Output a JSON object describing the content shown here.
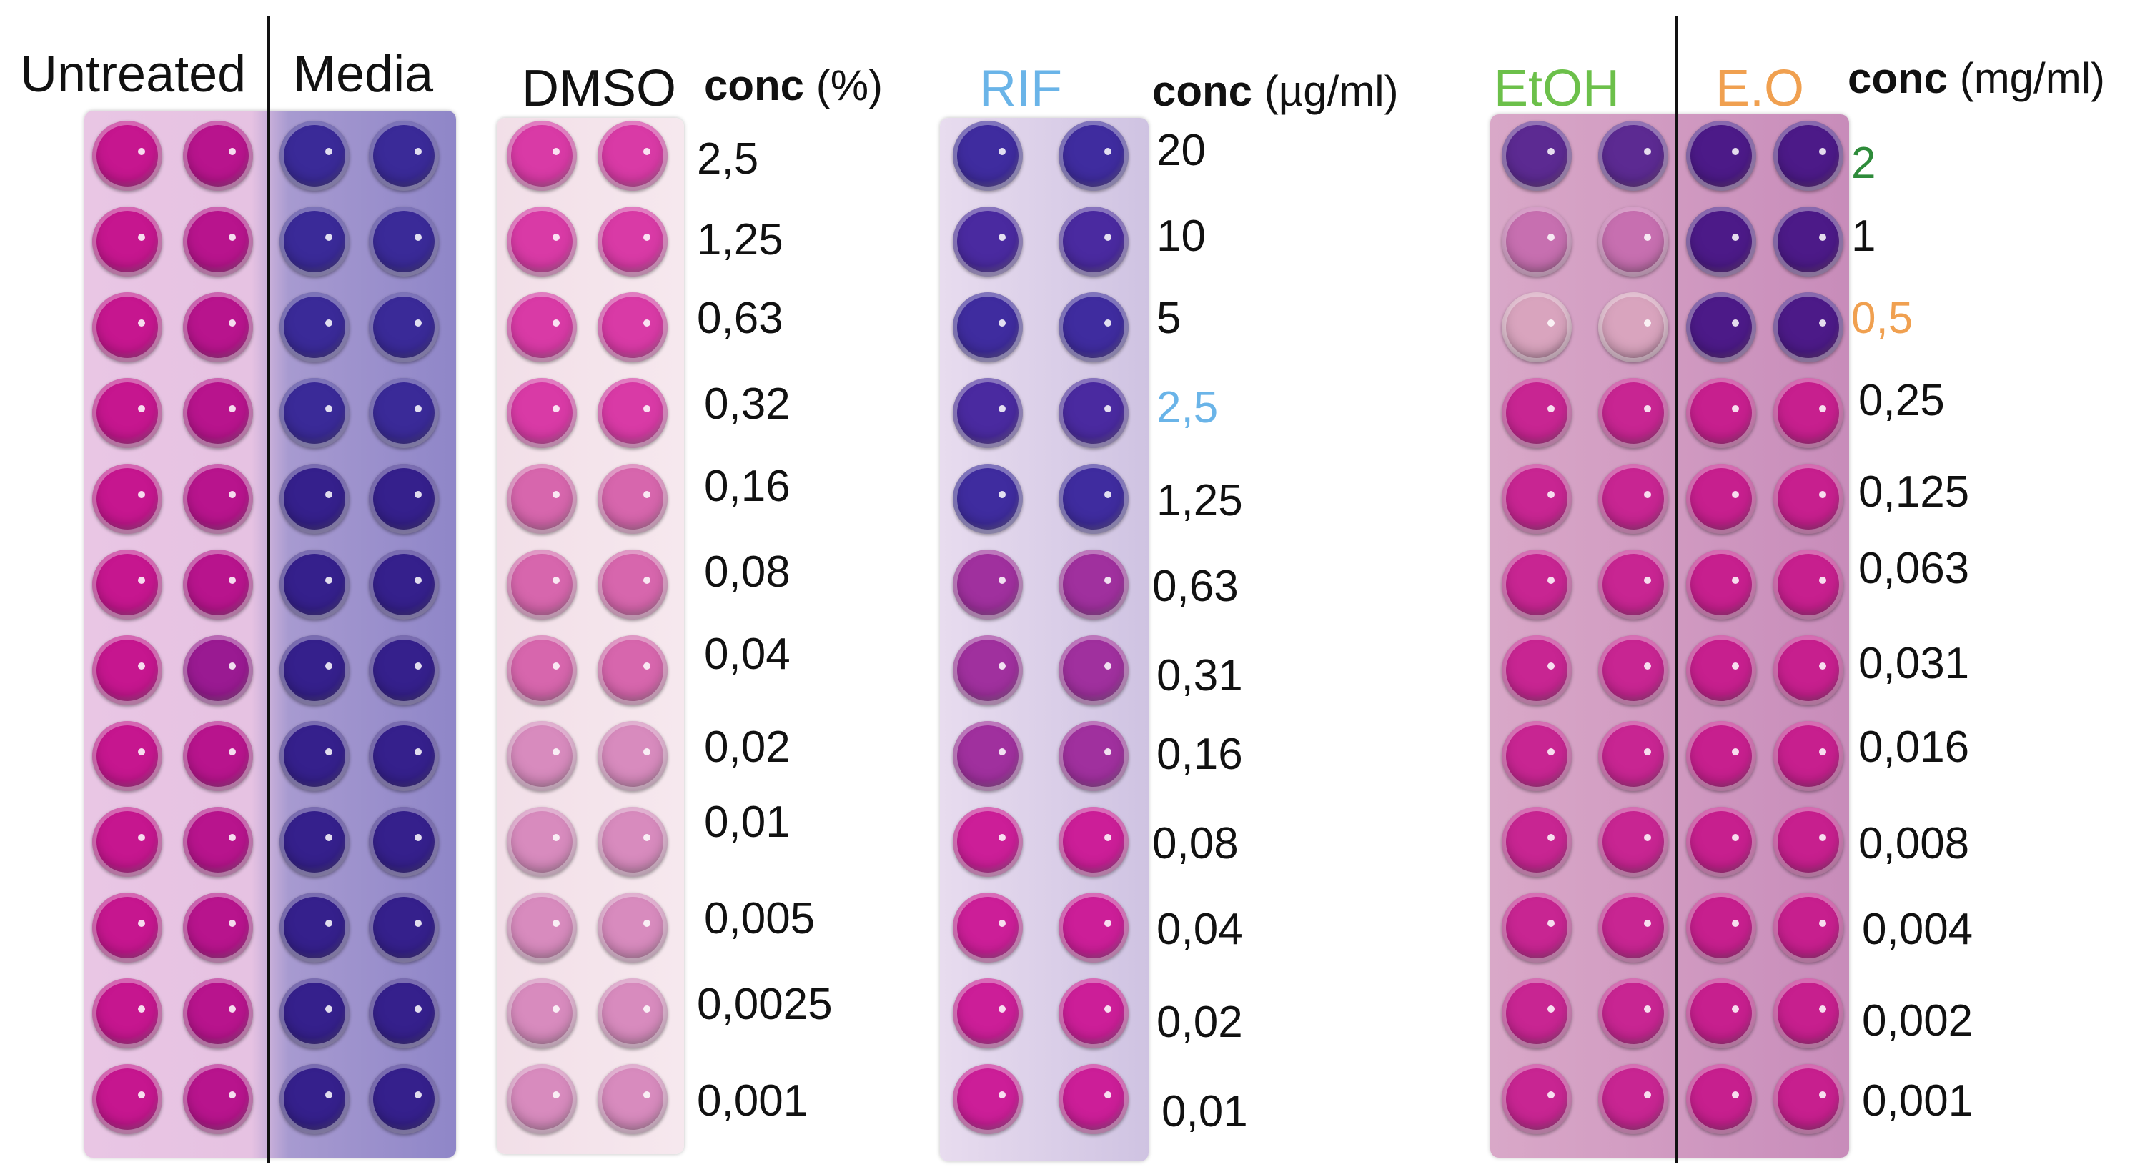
{
  "headers": {
    "untreated": "Untreated",
    "media": "Media",
    "dmso": "DMSO",
    "rif": "RIF",
    "etoh": "EtOH",
    "eo": "E.O"
  },
  "conc_headers": {
    "dmso": {
      "bold": "conc",
      "unit": "(%)"
    },
    "rif": {
      "bold": "conc",
      "unit": "(µg/ml)"
    },
    "eo": {
      "bold": "conc",
      "unit": "(mg/ml)"
    }
  },
  "colors": {
    "rif_label": "#6ab4e8",
    "etoh_label": "#6cc04a",
    "eo_label": "#f0a050",
    "highlight_green": "#2e8b3a",
    "highlight_orange": "#f0a050",
    "highlight_blue": "#6ab4e8",
    "pink": "#c8128a",
    "purple": "#3a1a8a"
  },
  "dmso_concentrations": [
    "2,5",
    "1,25",
    "0,63",
    "0,32",
    "0,16",
    "0,08",
    "0,04",
    "0,02",
    "0,01",
    "0,005",
    "0,0025",
    "0,001"
  ],
  "rif_concentrations": [
    "20",
    "10",
    "5",
    "2,5",
    "1,25",
    "0,63",
    "0,31",
    "0,16",
    "0,08",
    "0,04",
    "0,02",
    "0,01"
  ],
  "rif_highlight": "2,5",
  "eo_concentrations": [
    "2",
    "1",
    "0,5",
    "0,25",
    "0,125",
    "0,063",
    "0,031",
    "0,016",
    "0,008",
    "0,004",
    "0,002",
    "0,001"
  ],
  "eo_highlight_green": "2",
  "eo_highlight_orange": "0,5"
}
